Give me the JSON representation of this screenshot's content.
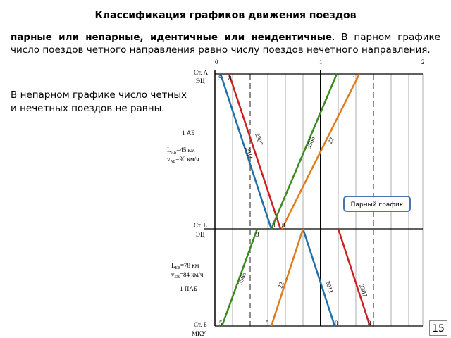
{
  "title": "Классификация графиков движения поездов",
  "paragraph": {
    "bold": "парные или непарные, идентичные или неидентичные",
    "rest": ". В парном графике число поездов четного направления равно числу поездов нечетного направления."
  },
  "note": "В непарном графике число четных и нечетных поездов не равны.",
  "diagram": {
    "hours": [
      "0",
      "1",
      "2"
    ],
    "stations": [
      [
        "Ст. А",
        "ЭЦ"
      ],
      [
        "Ст. Б",
        "ЭЦ"
      ],
      [
        "Ст. Б",
        "МКУ"
      ]
    ],
    "blocks": [
      "1 АБ",
      "1 ПАБ"
    ],
    "section1": [
      "L",
      "АБ",
      "=45 км",
      "v",
      "АБ",
      "=90 км/ч"
    ],
    "section2": [
      "L",
      "БВ",
      "=78 км",
      "v",
      "БВ",
      "=84 км/ч"
    ],
    "trains": [
      "2011",
      "2307",
      "3566",
      "22"
    ],
    "minutes": [
      "5",
      "8",
      "1",
      "3",
      "8",
      "3",
      "5",
      "5",
      "0",
      "8"
    ]
  },
  "callout": "Парный график",
  "page_number": "15"
}
